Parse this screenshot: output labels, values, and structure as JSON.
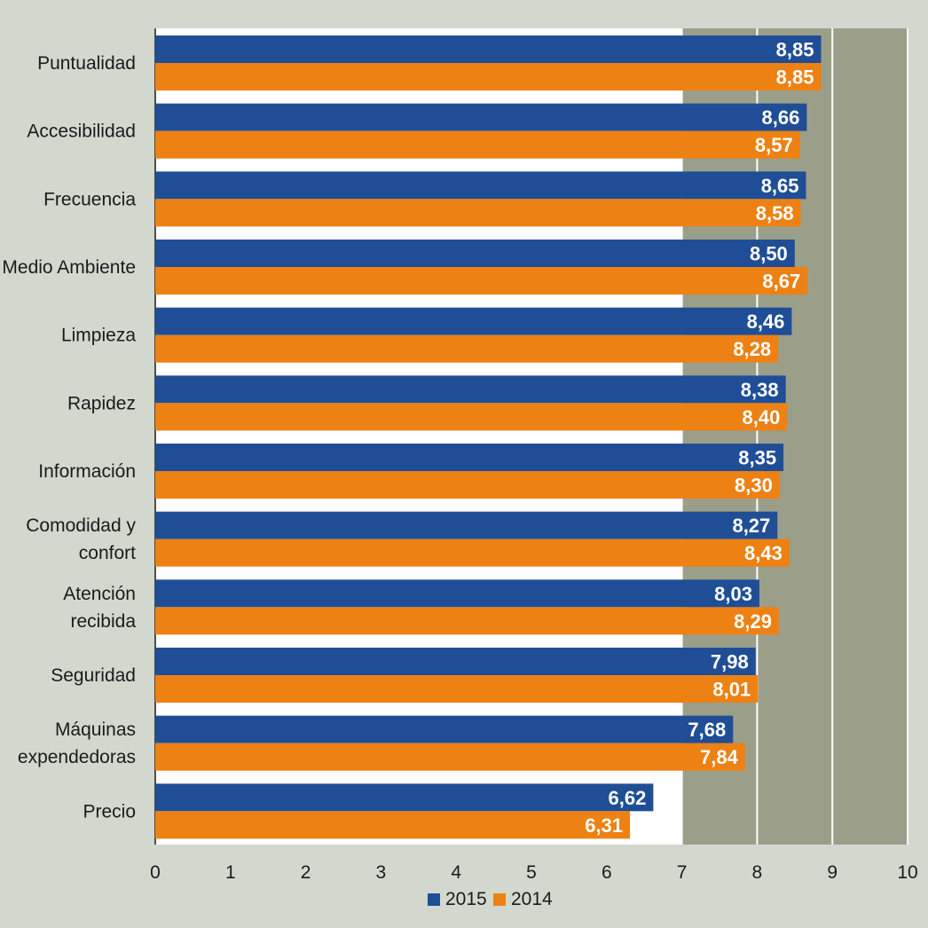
{
  "chart_data": {
    "type": "bar",
    "orientation": "horizontal",
    "title": "",
    "xlabel": "",
    "ylabel": "",
    "xlim": [
      0,
      10
    ],
    "ticks": [
      "0",
      "1",
      "2",
      "3",
      "4",
      "5",
      "6",
      "7",
      "8",
      "9",
      "10"
    ],
    "highlight_range": [
      7,
      10
    ],
    "categories": [
      [
        "Puntualidad"
      ],
      [
        "Accesibilidad"
      ],
      [
        "Frecuencia"
      ],
      [
        "Medio Ambiente"
      ],
      [
        "Limpieza"
      ],
      [
        "Rapidez"
      ],
      [
        "Información"
      ],
      [
        "Comodidad y",
        "confort"
      ],
      [
        "Atención",
        "recibida"
      ],
      [
        "Seguridad"
      ],
      [
        "Máquinas",
        "expendedoras"
      ],
      [
        "Precio"
      ]
    ],
    "series": [
      {
        "name": "2015",
        "color": "#1f4e97",
        "values": [
          8.85,
          8.66,
          8.65,
          8.5,
          8.46,
          8.38,
          8.35,
          8.27,
          8.03,
          7.98,
          7.68,
          6.62
        ],
        "labels": [
          "8,85",
          "8,66",
          "8,65",
          "8,50",
          "8,46",
          "8,38",
          "8,35",
          "8,27",
          "8,03",
          "7,98",
          "7,68",
          "6,62"
        ]
      },
      {
        "name": "2014",
        "color": "#ee8113",
        "values": [
          8.85,
          8.57,
          8.58,
          8.67,
          8.28,
          8.4,
          8.3,
          8.43,
          8.29,
          8.01,
          7.84,
          6.31
        ],
        "labels": [
          "8,85",
          "8,57",
          "8,58",
          "8,67",
          "8,28",
          "8,40",
          "8,30",
          "8,43",
          "8,29",
          "8,01",
          "7,84",
          "6,31"
        ]
      }
    ],
    "legend": [
      "2015",
      "2014"
    ],
    "legend_position": "bottom-center",
    "colors": {
      "background": "#d3d8cf",
      "plot_background": "#ffffff",
      "highlight_background": "#9b9f8a",
      "gridline": "#ffffff",
      "axis": "#1a1a1a"
    }
  }
}
